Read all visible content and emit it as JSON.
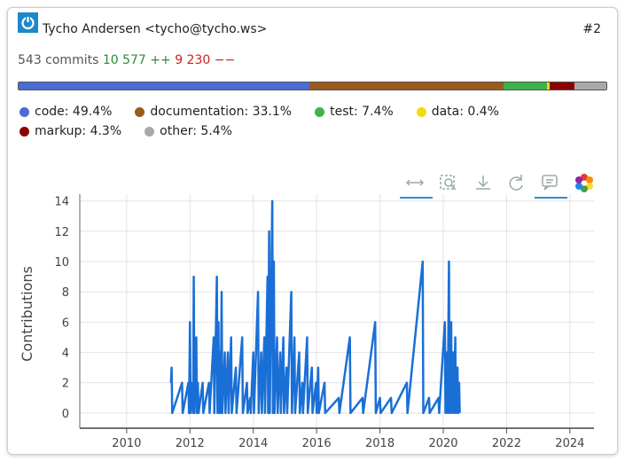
{
  "header": {
    "name": "Tycho Andersen <tycho@tycho.ws>",
    "rank": "#2"
  },
  "stats": {
    "commits": "543 commits",
    "additions": "10 577 ++",
    "deletions": "9 230 −−"
  },
  "breakdown": [
    {
      "label": "code: 49.4%",
      "value": 49.4,
      "color": "#4a6cd4"
    },
    {
      "label": "documentation: 33.1%",
      "value": 33.1,
      "color": "#9a5b1e"
    },
    {
      "label": "test: 7.4%",
      "value": 7.4,
      "color": "#3cb44b"
    },
    {
      "label": "data: 0.4%",
      "value": 0.4,
      "color": "#f5d90a"
    },
    {
      "label": "markup: 4.3%",
      "value": 4.3,
      "color": "#8b0000"
    },
    {
      "label": "other: 5.4%",
      "value": 5.4,
      "color": "#a9a9a9"
    }
  ],
  "chart_data": {
    "type": "line",
    "y_label": "Contributions",
    "x": [
      2011.4,
      2011.42,
      2011.44,
      2011.75,
      2011.77,
      2011.95,
      2011.97,
      2012.0,
      2012.02,
      2012.08,
      2012.1,
      2012.12,
      2012.14,
      2012.2,
      2012.22,
      2012.25,
      2012.27,
      2012.4,
      2012.42,
      2012.6,
      2012.62,
      2012.75,
      2012.77,
      2012.85,
      2012.87,
      2012.9,
      2012.92,
      2012.95,
      2012.97,
      2013.0,
      2013.02,
      2013.1,
      2013.12,
      2013.2,
      2013.22,
      2013.3,
      2013.32,
      2013.45,
      2013.47,
      2013.65,
      2013.67,
      2013.8,
      2013.82,
      2013.9,
      2013.92,
      2014.0,
      2014.02,
      2014.15,
      2014.17,
      2014.25,
      2014.27,
      2014.35,
      2014.37,
      2014.45,
      2014.47,
      2014.5,
      2014.52,
      2014.6,
      2014.62,
      2014.65,
      2014.67,
      2014.75,
      2014.77,
      2014.85,
      2014.87,
      2014.95,
      2014.97,
      2015.05,
      2015.07,
      2015.2,
      2015.22,
      2015.3,
      2015.32,
      2015.45,
      2015.47,
      2015.55,
      2015.57,
      2015.7,
      2015.72,
      2015.85,
      2015.87,
      2015.98,
      2016.0,
      2016.05,
      2016.07,
      2016.25,
      2016.27,
      2016.7,
      2016.72,
      2017.05,
      2017.07,
      2017.45,
      2017.47,
      2017.85,
      2017.87,
      2018.0,
      2018.02,
      2018.35,
      2018.37,
      2018.85,
      2018.87,
      2019.35,
      2019.37,
      2019.55,
      2019.57,
      2019.85,
      2019.87,
      2020.05,
      2020.07,
      2020.12,
      2020.14,
      2020.18,
      2020.2,
      2020.25,
      2020.27,
      2020.32,
      2020.34,
      2020.38,
      2020.4,
      2020.45,
      2020.47,
      2020.5,
      2020.52
    ],
    "series": [
      {
        "name": "Contributions",
        "color": "#1a6fd6",
        "values": [
          2,
          3,
          0,
          2,
          0,
          2,
          0,
          6,
          0,
          2,
          0,
          9,
          0,
          5,
          0,
          2,
          0,
          2,
          0,
          2,
          0,
          5,
          0,
          9,
          0,
          6,
          0,
          4,
          0,
          8,
          0,
          4,
          0,
          4,
          0,
          5,
          0,
          3,
          0,
          5,
          0,
          2,
          0,
          1,
          0,
          4,
          0,
          8,
          0,
          4,
          0,
          5,
          0,
          9,
          0,
          12,
          0,
          14,
          0,
          10,
          0,
          5,
          0,
          4,
          0,
          5,
          0,
          3,
          0,
          8,
          0,
          5,
          0,
          4,
          0,
          2,
          0,
          5,
          0,
          3,
          0,
          2,
          0,
          3,
          0,
          2,
          0,
          1,
          0,
          5,
          0,
          1,
          0,
          6,
          0,
          1,
          0,
          1,
          0,
          2,
          0,
          10,
          0,
          1,
          0,
          1,
          0,
          6,
          0,
          4,
          0,
          10,
          0,
          6,
          0,
          4,
          0,
          5,
          0,
          3,
          0,
          2,
          0
        ]
      }
    ],
    "xlim": [
      2008.52,
      2024.76
    ],
    "ylim": [
      -1,
      14.45
    ],
    "xticks": [
      2010,
      2012,
      2014,
      2016,
      2018,
      2020,
      2022,
      2024
    ],
    "yticks": [
      0,
      2,
      4,
      6,
      8,
      10,
      12,
      14
    ],
    "grid": true
  }
}
